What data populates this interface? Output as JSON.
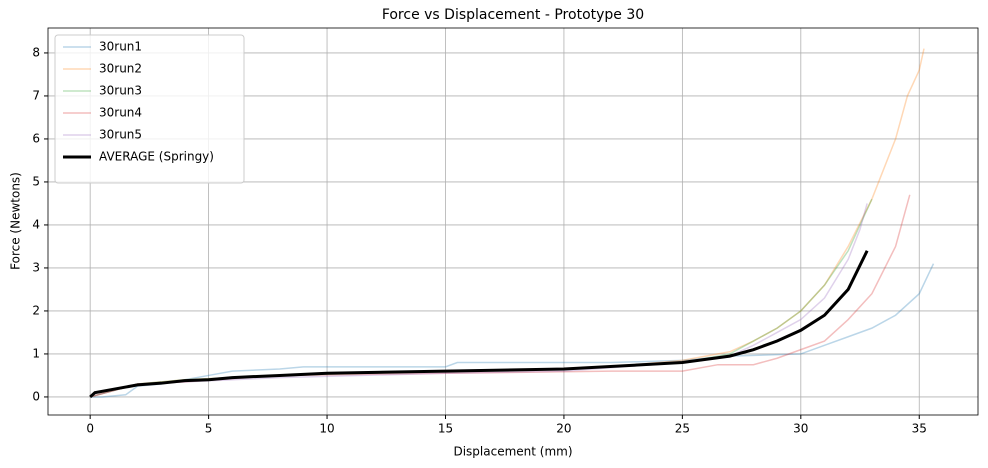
{
  "chart_data": {
    "type": "line",
    "title": "Force vs Displacement - Prototype 30",
    "x_label": "Displacement (mm)",
    "y_label": "Force (Newtons)",
    "xlim": [
      -1.78,
      37.48
    ],
    "xticks": [
      0,
      5,
      10,
      15,
      20,
      25,
      30,
      35
    ],
    "ylim": [
      -0.42,
      8.58
    ],
    "yticks": [
      0,
      1,
      2,
      3,
      4,
      5,
      6,
      7,
      8
    ],
    "grid": true,
    "legend": "upper left",
    "series": [
      {
        "name": "30run1",
        "color": "#1f77b4",
        "opacity": 0.3,
        "width": 1.5,
        "x": [
          0,
          0.5,
          1.5,
          2,
          3,
          4,
          5,
          6,
          8,
          9,
          15,
          15.5,
          22,
          25,
          27,
          30,
          31,
          32,
          33,
          34,
          35,
          35.6
        ],
        "values": [
          0,
          0,
          0.05,
          0.25,
          0.3,
          0.4,
          0.5,
          0.6,
          0.65,
          0.7,
          0.7,
          0.8,
          0.8,
          0.85,
          0.95,
          1.0,
          1.2,
          1.4,
          1.6,
          1.9,
          2.4,
          3.1
        ]
      },
      {
        "name": "30run2",
        "color": "#ff7f0e",
        "opacity": 0.3,
        "width": 1.5,
        "x": [
          0,
          1,
          2,
          4,
          6,
          10,
          15,
          20,
          23,
          25,
          27,
          28,
          29,
          30,
          31,
          32,
          33,
          34,
          34.5,
          35,
          35.2
        ],
        "values": [
          0,
          0.15,
          0.3,
          0.4,
          0.45,
          0.55,
          0.6,
          0.65,
          0.75,
          0.85,
          1.05,
          1.3,
          1.6,
          2.0,
          2.6,
          3.5,
          4.6,
          6.0,
          7.0,
          7.6,
          8.1
        ]
      },
      {
        "name": "30run3",
        "color": "#2ca02c",
        "opacity": 0.3,
        "width": 1.5,
        "x": [
          0,
          2,
          4,
          8,
          15,
          20,
          25,
          27,
          28,
          29,
          30,
          31,
          32,
          32.5,
          33
        ],
        "values": [
          0,
          0.3,
          0.4,
          0.5,
          0.6,
          0.65,
          0.8,
          1.0,
          1.3,
          1.6,
          2.0,
          2.6,
          3.4,
          4.0,
          4.6
        ]
      },
      {
        "name": "30run4",
        "color": "#d62728",
        "opacity": 0.3,
        "width": 1.5,
        "x": [
          0,
          2,
          4,
          8,
          15,
          22,
          25,
          26.5,
          28,
          29,
          30,
          31,
          32,
          33,
          34,
          34.6
        ],
        "values": [
          0,
          0.3,
          0.35,
          0.5,
          0.55,
          0.6,
          0.6,
          0.75,
          0.75,
          0.9,
          1.1,
          1.3,
          1.8,
          2.4,
          3.5,
          4.7
        ]
      },
      {
        "name": "30run5",
        "color": "#9467bd",
        "opacity": 0.3,
        "width": 1.5,
        "x": [
          0,
          2,
          4,
          6,
          8,
          15,
          20,
          25,
          27,
          28,
          29,
          30,
          31,
          32,
          32.5,
          32.8
        ],
        "values": [
          0,
          0.3,
          0.35,
          0.4,
          0.45,
          0.55,
          0.6,
          0.8,
          0.95,
          1.2,
          1.5,
          1.8,
          2.3,
          3.2,
          3.9,
          4.5
        ]
      },
      {
        "name": "AVERAGE (Springy)",
        "color": "#000000",
        "opacity": 1,
        "width": 3,
        "x": [
          0,
          0.2,
          1,
          2,
          3,
          4,
          5,
          6,
          8,
          10,
          15,
          20,
          25,
          27,
          28,
          29,
          30,
          31,
          32,
          32.8
        ],
        "values": [
          0,
          0.1,
          0.18,
          0.28,
          0.32,
          0.38,
          0.4,
          0.45,
          0.5,
          0.55,
          0.6,
          0.65,
          0.8,
          0.95,
          1.1,
          1.3,
          1.55,
          1.9,
          2.5,
          3.4
        ]
      }
    ]
  }
}
